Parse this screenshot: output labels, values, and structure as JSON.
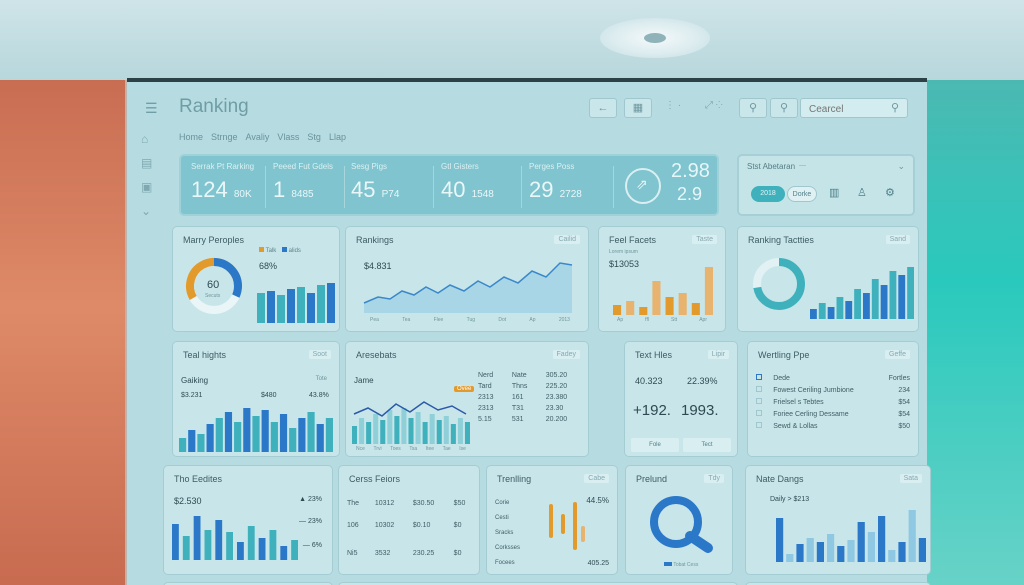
{
  "header": {
    "title": "Ranking",
    "search_placeholder": "Cearcel",
    "nav": [
      "Home",
      "Strnge",
      "Avaliy",
      "Vlass",
      "Stg",
      "Llap"
    ]
  },
  "kpis": [
    {
      "label": "Serrak Pt Rarking",
      "value": "124",
      "unit": "80K"
    },
    {
      "label": "Peeed Fut Gdels",
      "value": "1",
      "unit": "8485"
    },
    {
      "label": "Sesg Pigs",
      "value": "45",
      "unit": "P74"
    },
    {
      "label": "Gtl Gisters",
      "value": "40",
      "unit": "1548"
    },
    {
      "label": "Perges Poss",
      "value": "29",
      "unit": "2728"
    }
  ],
  "kpi_side": {
    "top": "2.98",
    "bottom": "2.9"
  },
  "right_panel": {
    "title": "Stst Abetaran",
    "pill_1": "2018",
    "pill_2": "Dorke"
  },
  "cards": {
    "many_periodes": {
      "title": "Marry Peroples",
      "donut_value": "60",
      "donut_sub": "Secuts",
      "pct": "68%",
      "legend": [
        "Talk",
        "alids"
      ]
    },
    "rankings": {
      "title": "Rankings",
      "badge": "Cailid",
      "value": "$4.831",
      "xlabels": [
        "Pea",
        "Tea",
        "Flee",
        "Tug",
        "Dot",
        "Ap",
        "2013"
      ]
    },
    "feel_facets": {
      "title": "Feel Facets",
      "badge": "Taste",
      "sub": "Lorem ipsum",
      "value": "$13053",
      "xlabels": [
        "Ap",
        "ffl",
        "Stt",
        "Apr"
      ]
    },
    "ranking_tacties": {
      "title": "Ranking Tactties",
      "badge": "Sand"
    },
    "teal_highs": {
      "title": "Teal hights",
      "badge": "Soot",
      "sub": "Gaiking",
      "sub_badge": "Tote",
      "v1": "$3.231",
      "v2": "$480",
      "v3": "43.8%"
    },
    "aresebats": {
      "title": "Aresebats",
      "badge": "Fadey",
      "sub": "Jame",
      "tag": "Ovee",
      "xlabels": [
        "Nce",
        "Trvi",
        "Toes",
        "Tsa",
        "Itee",
        "Tae",
        "Ise"
      ],
      "rows": [
        [
          "Nerd",
          "Nate",
          "305.20"
        ],
        [
          "Tard",
          "Thns",
          "225.20"
        ],
        [
          "2313",
          "161",
          "23.380"
        ],
        [
          "2313",
          "T31",
          "23.30"
        ],
        [
          "5.15",
          "531",
          "20.200"
        ]
      ]
    },
    "text_hles": {
      "title": "Text Hles",
      "badge": "Lipir",
      "v1": "40.323",
      "v2": "22.39%",
      "big1": "+192.",
      "big2": "1993.",
      "btn1": "Fole",
      "btn2": "Tect"
    },
    "vertling": {
      "title": "Wertling Ppe",
      "badge": "Geffe",
      "rows": [
        [
          "Dede",
          "Fortles"
        ],
        [
          "Fowest Ceriling Jumbione",
          "234"
        ],
        [
          "Frielsel s Tebtes",
          "$54"
        ],
        [
          "Foriee Cerling Dessame",
          "$54"
        ],
        [
          "Sewd & Lollas",
          "$50"
        ]
      ]
    },
    "tho_eedites": {
      "title": "Tho Eedites",
      "v1": "$2.530",
      "v2": "23%",
      "v3": "23%",
      "v4": "6%"
    },
    "cerss_feiors": {
      "title": "Cerss Feiors",
      "rows": [
        [
          "The",
          "10312",
          "$30.50",
          "$50"
        ],
        [
          "106",
          "10302",
          "$0.10",
          "$0"
        ],
        [
          "Ni5",
          "3532",
          "230.25",
          "$0"
        ]
      ]
    },
    "trending": {
      "title": "Trenlling",
      "badge": "Cabe",
      "pct": "44.5%",
      "labels": [
        "Corie",
        "Cesti",
        "Sracks",
        "Corksses",
        "Focees"
      ],
      "value": "405.25"
    },
    "prelund": {
      "title": "Prelund",
      "badge": "Tdy",
      "legend": "Tobat Cess"
    },
    "nate_dangs": {
      "title": "Nate Dangs",
      "badge": "Sata",
      "value": "Daily > $213"
    }
  }
}
